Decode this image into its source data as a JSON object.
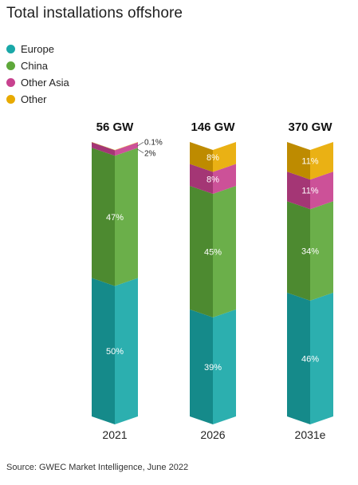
{
  "chart_data": {
    "type": "bar",
    "stacked": true,
    "title": "Total installations offshore",
    "categories": [
      "2021",
      "2026",
      "2031e"
    ],
    "totals": [
      "56 GW",
      "146 GW",
      "370 GW"
    ],
    "series": [
      {
        "name": "Europe",
        "color": "#1aa8a8",
        "values": [
          50,
          39,
          46
        ],
        "labels": [
          "50%",
          "39%",
          "46%"
        ]
      },
      {
        "name": "China",
        "color": "#5ea83a",
        "values": [
          47,
          45,
          34
        ],
        "labels": [
          "47%",
          "45%",
          "34%"
        ]
      },
      {
        "name": "Other Asia",
        "color": "#c8428f",
        "values": [
          2,
          8,
          11
        ],
        "labels": [
          "2%",
          "8%",
          "11%"
        ]
      },
      {
        "name": "Other",
        "color": "#e8aa00",
        "values": [
          0.1,
          8,
          11
        ],
        "labels": [
          "0.1%",
          "8%",
          "11%"
        ]
      }
    ],
    "ylim": [
      0,
      100
    ],
    "legend": "top-left",
    "grid": false
  },
  "source": "Source: GWEC Market Intelligence, June 2022"
}
